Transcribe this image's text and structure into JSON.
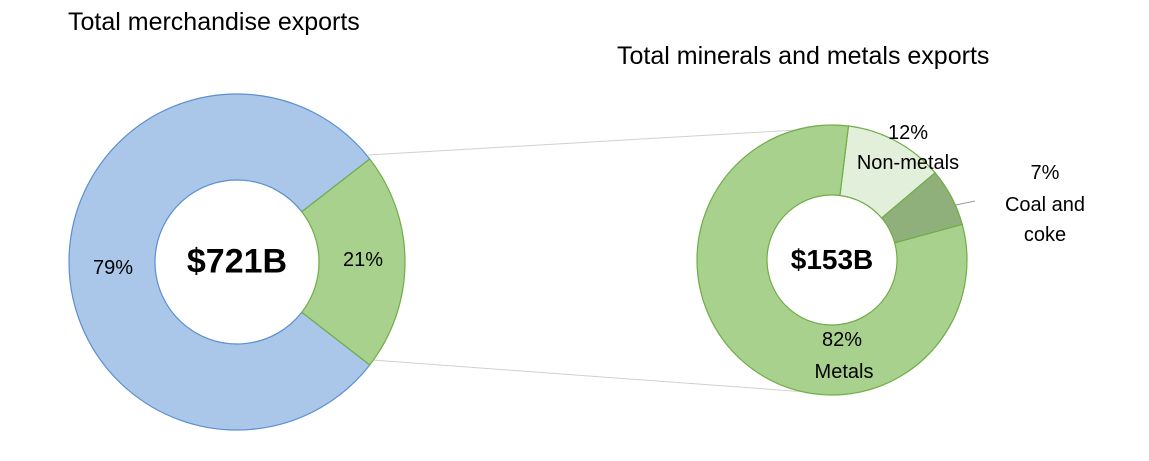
{
  "chart_data": [
    {
      "type": "pie",
      "title": "Total merchandise exports",
      "center_label": "$721B",
      "values": [
        79,
        21
      ],
      "value_labels": [
        "79%",
        "21%"
      ],
      "colors": [
        "#aac7ea",
        "#a9d18e"
      ],
      "strokes": [
        "#5b8fcf",
        "#70ad47"
      ]
    },
    {
      "type": "pie",
      "title": "Total minerals and metals exports",
      "center_label": "$153B",
      "categories": [
        "Non-metals",
        "Coal and coke",
        "Metals"
      ],
      "values": [
        12,
        7,
        82
      ],
      "value_labels": [
        "12%",
        "7%",
        "82%"
      ],
      "colors": [
        "#e2efda",
        "#8fb07a",
        "#a9d18e"
      ],
      "strokes": [
        "#70ad47",
        "#70ad47",
        "#70ad47"
      ]
    }
  ]
}
